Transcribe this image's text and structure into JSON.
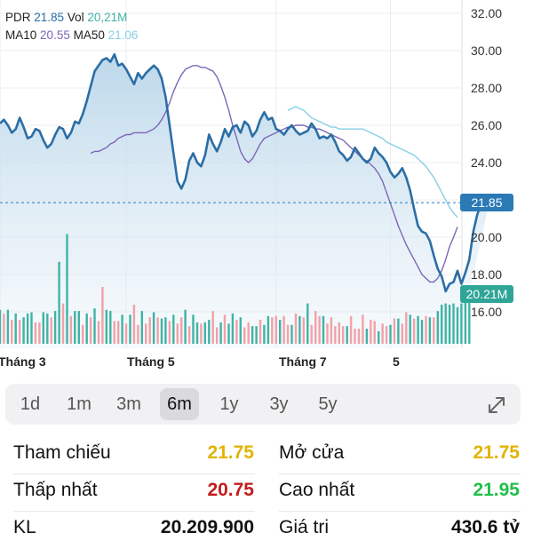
{
  "legend": {
    "ticker": "PDR",
    "price": "21.85",
    "vol_label": "Vol",
    "vol": "20,21M",
    "ma10_label": "MA10",
    "ma10": "20.55",
    "ma50_label": "MA50",
    "ma50": "21.06"
  },
  "badges": {
    "price": "21.85",
    "volume": "20.21M"
  },
  "colors": {
    "price_line": "#2b6ea6",
    "ma10": "#7c66b8",
    "ma50": "#86cfe6",
    "volume_up": "#3fb3a6",
    "volume_down": "#f2a1a8",
    "reference": "#21bf4b",
    "low": "#c31b1b",
    "open": "#e0b400"
  },
  "chart_data": {
    "type": "line",
    "y_ticks": [
      "32.00",
      "30.00",
      "28.00",
      "26.00",
      "24.00",
      "20.00",
      "18.00",
      "16.00"
    ],
    "ylim": [
      14.4,
      32.5
    ],
    "x_labels": [
      "Tháng 3",
      "Tháng 5",
      "Tháng 7",
      "5"
    ],
    "x_label_index": [
      0,
      32,
      70,
      99
    ],
    "last_index": 116,
    "price": [
      26.1,
      26.3,
      26.0,
      25.6,
      25.8,
      26.4,
      25.9,
      25.3,
      25.4,
      25.8,
      25.7,
      25.2,
      24.8,
      25.0,
      25.5,
      25.9,
      25.8,
      25.3,
      25.6,
      26.2,
      26.1,
      26.6,
      27.3,
      28.1,
      28.9,
      29.2,
      29.5,
      29.6,
      29.4,
      29.8,
      29.2,
      29.3,
      29.0,
      28.6,
      28.2,
      28.8,
      28.5,
      28.8,
      29.0,
      29.2,
      29.0,
      28.5,
      27.5,
      26.0,
      24.5,
      23.0,
      22.6,
      23.1,
      24.1,
      24.5,
      24.0,
      23.8,
      24.4,
      25.5,
      25.0,
      24.6,
      25.1,
      25.8,
      25.4,
      25.9,
      26.0,
      25.6,
      26.2,
      26.0,
      25.4,
      25.7,
      26.3,
      26.7,
      26.3,
      26.4,
      25.8,
      25.7,
      25.5,
      25.8,
      26.0,
      25.7,
      25.5,
      25.6,
      25.7,
      26.1,
      25.8,
      25.3,
      25.4,
      25.3,
      25.5,
      25.1,
      24.6,
      24.4,
      24.1,
      24.3,
      24.8,
      24.5,
      24.2,
      24.0,
      24.2,
      24.8,
      24.5,
      24.3,
      24.0,
      23.5,
      23.2,
      23.4,
      23.7,
      23.2,
      22.5,
      21.5,
      20.6,
      20.3,
      20.2,
      19.8,
      19.0,
      18.3,
      17.9,
      17.1,
      17.5,
      17.6,
      18.2,
      17.5,
      18.1,
      18.8,
      20.3,
      21.2,
      21.8,
      21.9,
      21.85
    ],
    "ma10": [
      24.5,
      24.6,
      24.6,
      24.7,
      24.8,
      25.0,
      25.1,
      25.3,
      25.4,
      25.5,
      25.5,
      25.6,
      25.6,
      25.6,
      25.6,
      25.7,
      25.8,
      26.0,
      26.3,
      26.7,
      27.2,
      27.8,
      28.3,
      28.7,
      29.0,
      29.1,
      29.2,
      29.2,
      29.1,
      29.1,
      29.0,
      28.9,
      28.6,
      28.1,
      27.5,
      26.8,
      26.0,
      25.3,
      24.6,
      24.2,
      24.0,
      24.2,
      24.6,
      25.0,
      25.3,
      25.4,
      25.5,
      25.6,
      25.7,
      25.8,
      25.9,
      25.9,
      26.0,
      26.0,
      26.0,
      25.9,
      25.9,
      25.8,
      25.8,
      25.7,
      25.6,
      25.5,
      25.4,
      25.3,
      25.2,
      25.0,
      24.8,
      24.6,
      24.4,
      24.2,
      24.1,
      23.9,
      23.7,
      23.4,
      23.0,
      22.4,
      21.8,
      21.2,
      20.6,
      20.1,
      19.6,
      19.2,
      18.8,
      18.4,
      18.0,
      17.8,
      17.6,
      17.6,
      17.8,
      18.2,
      18.8,
      19.5,
      20.0,
      20.55
    ],
    "ma10_start": 23,
    "ma50": [
      26.8,
      26.9,
      27.0,
      26.9,
      26.8,
      26.6,
      26.4,
      26.3,
      26.2,
      26.1,
      26.0,
      25.9,
      25.9,
      25.8,
      25.8,
      25.8,
      25.8,
      25.8,
      25.8,
      25.8,
      25.7,
      25.6,
      25.5,
      25.4,
      25.3,
      25.1,
      25.0,
      24.9,
      24.8,
      24.7,
      24.6,
      24.5,
      24.4,
      24.2,
      24.0,
      23.8,
      23.5,
      23.2,
      22.8,
      22.4,
      22.0,
      21.6,
      21.3,
      21.06
    ],
    "ma50_start": 73,
    "volume": [
      2.7,
      2.4,
      2.7,
      1.9,
      2.4,
      1.9,
      2.1,
      2.4,
      2.5,
      1.7,
      1.7,
      2.5,
      2.4,
      2.1,
      2.6,
      6.5,
      3.2,
      8.7,
      2.2,
      2.6,
      2.6,
      1.5,
      2.4,
      2.1,
      2.8,
      1.8,
      4.5,
      2.7,
      2.6,
      1.8,
      1.8,
      2.3,
      1.6,
      2.3,
      3.1,
      1.5,
      2.6,
      1.6,
      2.1,
      2.5,
      2.1,
      2.0,
      2.1,
      1.8,
      2.3,
      1.6,
      2.1,
      2.7,
      1.4,
      2.3,
      1.7,
      1.6,
      1.7,
      1.9,
      2.6,
      1.3,
      1.7,
      2.3,
      1.6,
      2.4,
      1.9,
      2.1,
      1.3,
      1.7,
      1.4,
      1.4,
      1.9,
      1.5,
      2.2,
      2.1,
      2.2,
      1.9,
      2.2,
      1.5,
      1.5,
      2.4,
      2.2,
      2.1,
      3.2,
      1.5,
      2.6,
      2.2,
      2.2,
      1.6,
      2.1,
      1.4,
      1.7,
      1.4,
      1.4,
      2.2,
      1.2,
      1.2,
      2.3,
      1.2,
      1.9,
      1.8,
      1.0,
      1.6,
      1.4,
      1.5,
      2.0,
      2.0,
      1.6,
      2.5,
      2.3,
      2.0,
      2.2,
      1.9,
      2.2,
      2.1,
      2.1,
      2.6,
      3.1,
      3.2,
      3.1,
      3.2,
      2.9,
      3.2,
      3.4,
      3.3
    ],
    "volume_up": [
      1,
      0,
      1,
      0,
      1,
      0,
      1,
      1,
      1,
      0,
      0,
      1,
      1,
      0,
      1,
      1,
      0,
      1,
      0,
      1,
      1,
      0,
      1,
      0,
      1,
      0,
      0,
      1,
      1,
      0,
      0,
      1,
      0,
      1,
      0,
      0,
      1,
      0,
      0,
      1,
      0,
      1,
      1,
      0,
      1,
      0,
      0,
      1,
      0,
      1,
      1,
      0,
      1,
      1,
      0,
      0,
      1,
      0,
      1,
      1,
      0,
      1,
      0,
      0,
      1,
      1,
      0,
      1,
      1,
      0,
      0,
      1,
      0,
      0,
      1,
      0,
      1,
      0,
      1,
      0,
      0,
      0,
      1,
      0,
      0,
      0,
      0,
      0,
      1,
      0,
      0,
      0,
      0,
      1,
      0,
      0,
      1,
      0,
      0,
      1,
      0,
      1,
      0,
      0,
      1,
      0,
      1,
      1,
      0,
      1,
      0,
      1,
      1,
      1,
      1,
      1,
      1,
      1,
      1,
      1
    ]
  },
  "range": {
    "options": [
      "1d",
      "1m",
      "3m",
      "6m",
      "1y",
      "3y",
      "5y"
    ],
    "selected": "6m"
  },
  "stats": {
    "left": [
      {
        "label": "Tham chiếu",
        "value": "21.75"
      },
      {
        "label": "Thấp nhất",
        "value": "20.75"
      },
      {
        "label": "KL",
        "value": "20,209,900"
      }
    ],
    "right": [
      {
        "label": "Mở cửa",
        "value": "21.75"
      },
      {
        "label": "Cao nhất",
        "value": "21.95"
      },
      {
        "label": "Giá trị",
        "value": "430.6 tỷ"
      }
    ]
  }
}
